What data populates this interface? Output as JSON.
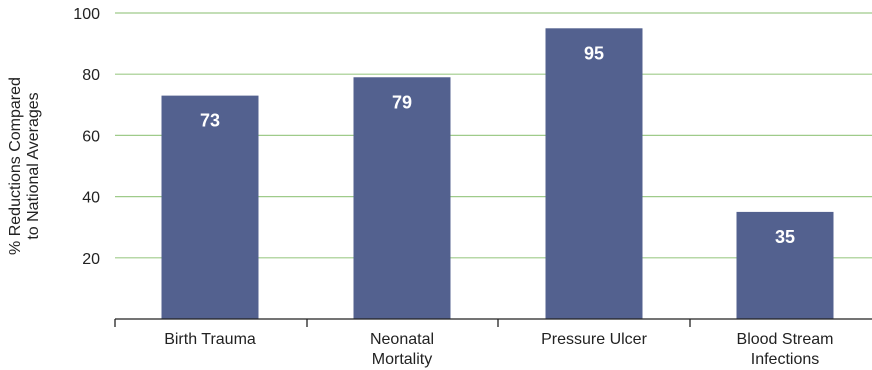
{
  "chart_data": {
    "type": "bar",
    "categories": [
      "Birth Trauma",
      "Neonatal Mortality",
      "Pressure Ulcer",
      "Blood Stream Infections"
    ],
    "category_lines": [
      [
        "Birth Trauma"
      ],
      [
        "Neonatal",
        "Mortality"
      ],
      [
        "Pressure Ulcer"
      ],
      [
        "Blood Stream",
        "Infections"
      ]
    ],
    "values": [
      73,
      79,
      95,
      35
    ],
    "data_labels": [
      "73",
      "79",
      "95",
      "35"
    ],
    "ylabel_lines": [
      "% Reductions Compared",
      "to National Averages"
    ],
    "xlabel": "",
    "ylim": [
      0,
      100
    ],
    "yticks": [
      20,
      40,
      60,
      80,
      100
    ],
    "ytick_labels": [
      "20",
      "40",
      "60",
      "80",
      "100"
    ],
    "grid": "horizontal",
    "legend": "none"
  },
  "colors": {
    "bar": "#53618F",
    "grid": "#9FCB8A",
    "axis": "#222222",
    "data_label": "#ffffff"
  }
}
